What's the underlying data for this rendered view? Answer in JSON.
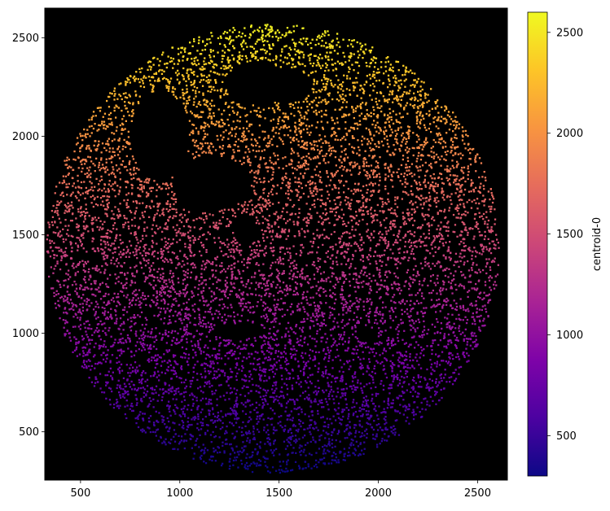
{
  "chart_data": {
    "type": "scatter",
    "title": "",
    "xlabel": "",
    "ylabel": "",
    "background": "#000000",
    "xlim": [
      320,
      2650
    ],
    "ylim": [
      255,
      2650
    ],
    "xticks": [
      500,
      1000,
      1500,
      2000,
      2500
    ],
    "yticks": [
      500,
      1000,
      1500,
      2000,
      2500
    ],
    "point_cloud": {
      "shape": "disk",
      "center": [
        1470,
        1430
      ],
      "radius": 1140,
      "color_by": "y",
      "point_count": 9000,
      "holes": [
        {
          "center": [
            900,
            2000
          ],
          "radii": [
            150,
            230
          ]
        },
        {
          "center": [
            1160,
            1760
          ],
          "radii": [
            200,
            140
          ]
        },
        {
          "center": [
            1390,
            2270
          ],
          "radii": [
            160,
            110
          ]
        },
        {
          "center": [
            1550,
            2260
          ],
          "radii": [
            120,
            80
          ]
        },
        {
          "center": [
            1330,
            1530
          ],
          "radii": [
            60,
            70
          ]
        },
        {
          "center": [
            1300,
            1010
          ],
          "radii": [
            110,
            40
          ]
        },
        {
          "center": [
            1940,
            1000
          ],
          "radii": [
            40,
            40
          ]
        }
      ]
    },
    "colorbar": {
      "label": "centroid-0",
      "colormap": "plasma",
      "range": [
        300,
        2600
      ],
      "ticks": [
        500,
        1000,
        1500,
        2000,
        2500
      ]
    }
  }
}
